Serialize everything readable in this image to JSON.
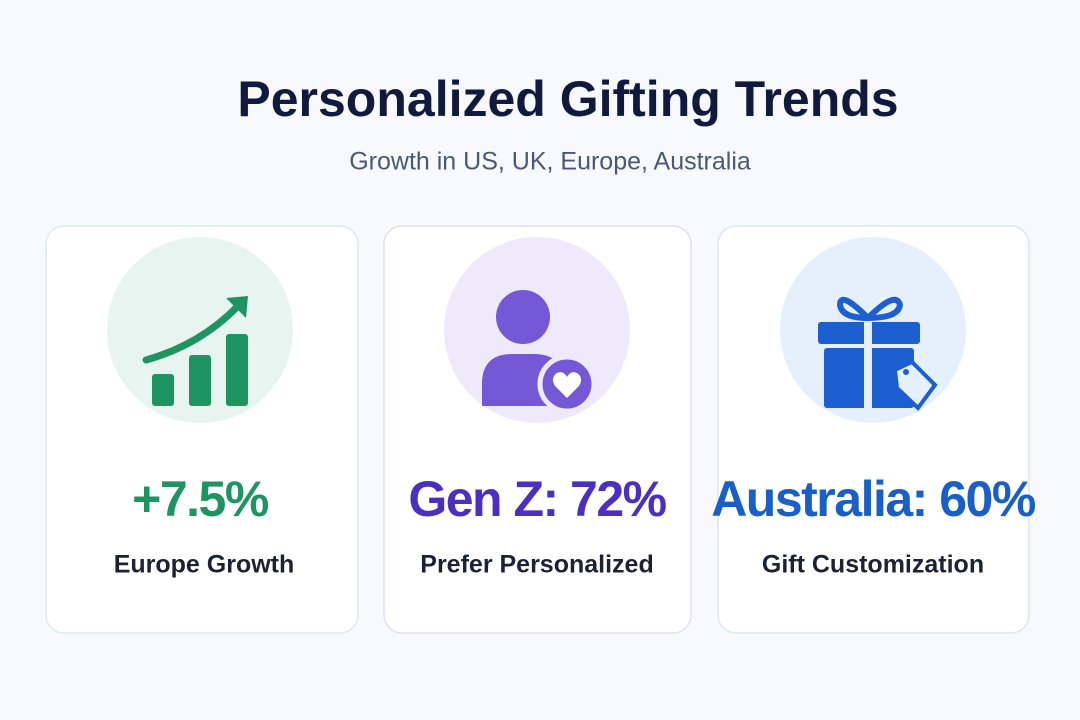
{
  "header": {
    "title": "Personalized Gifting Trends",
    "subtitle": "Growth in US, UK, Europe, Australia"
  },
  "cards": [
    {
      "stat": "+7.5%",
      "label": "Europe Growth"
    },
    {
      "stat": "Gen Z: 72%",
      "label": "Prefer Personalized"
    },
    {
      "stat": "Australia: 60%",
      "label": "Gift Customization"
    }
  ]
}
